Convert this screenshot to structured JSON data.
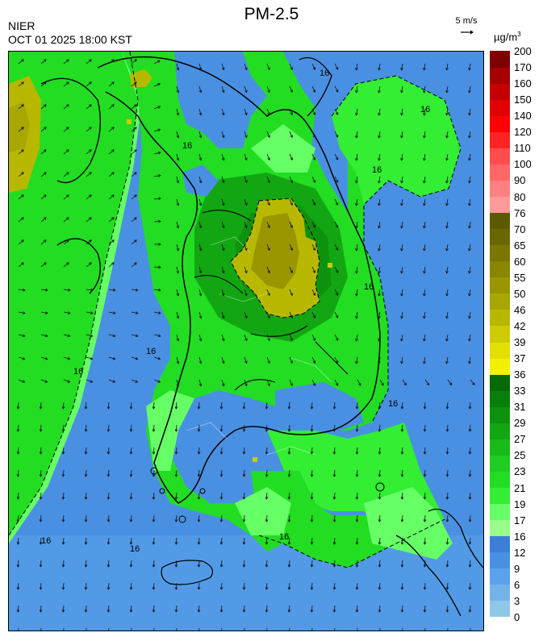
{
  "title": "PM-2.5",
  "agency": "NIER",
  "timestamp": "OCT 01 2025 18:00 KST",
  "wind_reference": {
    "label": "5 m/s",
    "icon": "arrow-right-icon"
  },
  "units": {
    "base": "µg/m",
    "superscript": "3"
  },
  "legend": {
    "levels": [
      "0",
      "3",
      "6",
      "9",
      "12",
      "16",
      "17",
      "19",
      "21",
      "23",
      "25",
      "27",
      "29",
      "31",
      "33",
      "36",
      "37",
      "39",
      "42",
      "46",
      "50",
      "55",
      "60",
      "65",
      "70",
      "76",
      "80",
      "90",
      "100",
      "110",
      "120",
      "140",
      "150",
      "160",
      "170",
      "200"
    ],
    "colors": [
      "#8ec7e8",
      "#74b3ea",
      "#5aa2ea",
      "#4a90e2",
      "#3b7fd8",
      "#99ff88",
      "#66ff66",
      "#33ee33",
      "#22dd22",
      "#1fcc1f",
      "#18bb18",
      "#12a612",
      "#0e920e",
      "#0a7e0a",
      "#066a06",
      "#f2f200",
      "#e2e000",
      "#cccc00",
      "#b8b800",
      "#a8a600",
      "#999600",
      "#8a8600",
      "#7a7600",
      "#6a6600",
      "#5c5a00",
      "#ff9a9a",
      "#ff8080",
      "#ff6666",
      "#ff4d4d",
      "#ff2222",
      "#ff0000",
      "#e00000",
      "#c40000",
      "#a40000",
      "#7e0000"
    ]
  },
  "map": {
    "contour_labels": [
      "16",
      "16",
      "16",
      "16",
      "16",
      "16",
      "16",
      "16",
      "16",
      "16",
      "16"
    ],
    "wind_field_icon": "wind-arrow-icon"
  }
}
